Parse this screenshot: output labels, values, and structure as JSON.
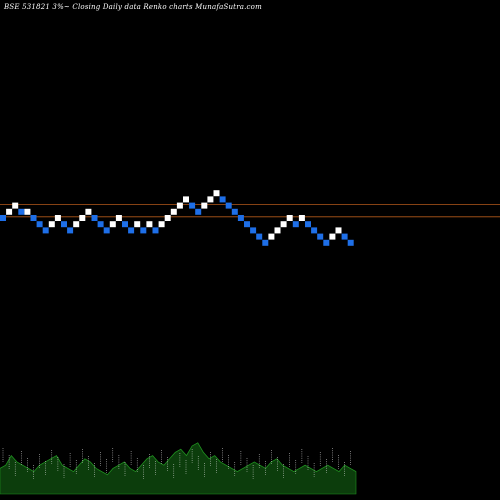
{
  "header": {
    "title": "BSE 531821 3%~ Closing Daily data Renko charts MunafaSutra.com"
  },
  "colors": {
    "background": "#000000",
    "up_brick": "#ffffff",
    "down_brick": "#1e6fe8",
    "reference_line": "#b2591a",
    "volume_fill": "#0c3d0c",
    "volume_edge": "#1f8f1f",
    "text": "#ffffff"
  },
  "chart_data": {
    "type": "renko",
    "title": "BSE 531821 3%~ Closing Daily data Renko charts MunafaSutra.com",
    "brick_size_percent": 3,
    "reference_lines": [
      {
        "label": "upper",
        "value": 8
      },
      {
        "label": "lower",
        "value": 6
      }
    ],
    "bricks": [
      {
        "level": 5,
        "dir": "down"
      },
      {
        "level": 6,
        "dir": "up"
      },
      {
        "level": 7,
        "dir": "up"
      },
      {
        "level": 6,
        "dir": "down"
      },
      {
        "level": 6,
        "dir": "up"
      },
      {
        "level": 5,
        "dir": "down"
      },
      {
        "level": 4,
        "dir": "down"
      },
      {
        "level": 3,
        "dir": "down"
      },
      {
        "level": 4,
        "dir": "up"
      },
      {
        "level": 5,
        "dir": "up"
      },
      {
        "level": 4,
        "dir": "down"
      },
      {
        "level": 3,
        "dir": "down"
      },
      {
        "level": 4,
        "dir": "up"
      },
      {
        "level": 5,
        "dir": "up"
      },
      {
        "level": 6,
        "dir": "up"
      },
      {
        "level": 5,
        "dir": "down"
      },
      {
        "level": 4,
        "dir": "down"
      },
      {
        "level": 3,
        "dir": "down"
      },
      {
        "level": 4,
        "dir": "up"
      },
      {
        "level": 5,
        "dir": "up"
      },
      {
        "level": 4,
        "dir": "down"
      },
      {
        "level": 3,
        "dir": "down"
      },
      {
        "level": 4,
        "dir": "up"
      },
      {
        "level": 3,
        "dir": "down"
      },
      {
        "level": 4,
        "dir": "up"
      },
      {
        "level": 3,
        "dir": "down"
      },
      {
        "level": 4,
        "dir": "up"
      },
      {
        "level": 5,
        "dir": "up"
      },
      {
        "level": 6,
        "dir": "up"
      },
      {
        "level": 7,
        "dir": "up"
      },
      {
        "level": 8,
        "dir": "up"
      },
      {
        "level": 7,
        "dir": "down"
      },
      {
        "level": 6,
        "dir": "down"
      },
      {
        "level": 7,
        "dir": "up"
      },
      {
        "level": 8,
        "dir": "up"
      },
      {
        "level": 9,
        "dir": "up"
      },
      {
        "level": 8,
        "dir": "down"
      },
      {
        "level": 7,
        "dir": "down"
      },
      {
        "level": 6,
        "dir": "down"
      },
      {
        "level": 5,
        "dir": "down"
      },
      {
        "level": 4,
        "dir": "down"
      },
      {
        "level": 3,
        "dir": "down"
      },
      {
        "level": 2,
        "dir": "down"
      },
      {
        "level": 1,
        "dir": "down"
      },
      {
        "level": 2,
        "dir": "up"
      },
      {
        "level": 3,
        "dir": "up"
      },
      {
        "level": 4,
        "dir": "up"
      },
      {
        "level": 5,
        "dir": "up"
      },
      {
        "level": 4,
        "dir": "down"
      },
      {
        "level": 5,
        "dir": "up"
      },
      {
        "level": 4,
        "dir": "down"
      },
      {
        "level": 3,
        "dir": "down"
      },
      {
        "level": 2,
        "dir": "down"
      },
      {
        "level": 1,
        "dir": "down"
      },
      {
        "level": 2,
        "dir": "up"
      },
      {
        "level": 3,
        "dir": "up"
      },
      {
        "level": 2,
        "dir": "down"
      },
      {
        "level": 1,
        "dir": "down"
      }
    ],
    "volume_profile": [
      8,
      9,
      12,
      10,
      9,
      8,
      7,
      9,
      10,
      11,
      12,
      9,
      8,
      7,
      9,
      11,
      10,
      8,
      7,
      6,
      8,
      9,
      10,
      8,
      7,
      9,
      11,
      12,
      10,
      9,
      11,
      13,
      14,
      12,
      15,
      16,
      13,
      11,
      12,
      10,
      9,
      8,
      7,
      8,
      9,
      10,
      9,
      8,
      10,
      11,
      9,
      8,
      7,
      8,
      9,
      8,
      7,
      8,
      9,
      8,
      7,
      9,
      8,
      7
    ]
  }
}
